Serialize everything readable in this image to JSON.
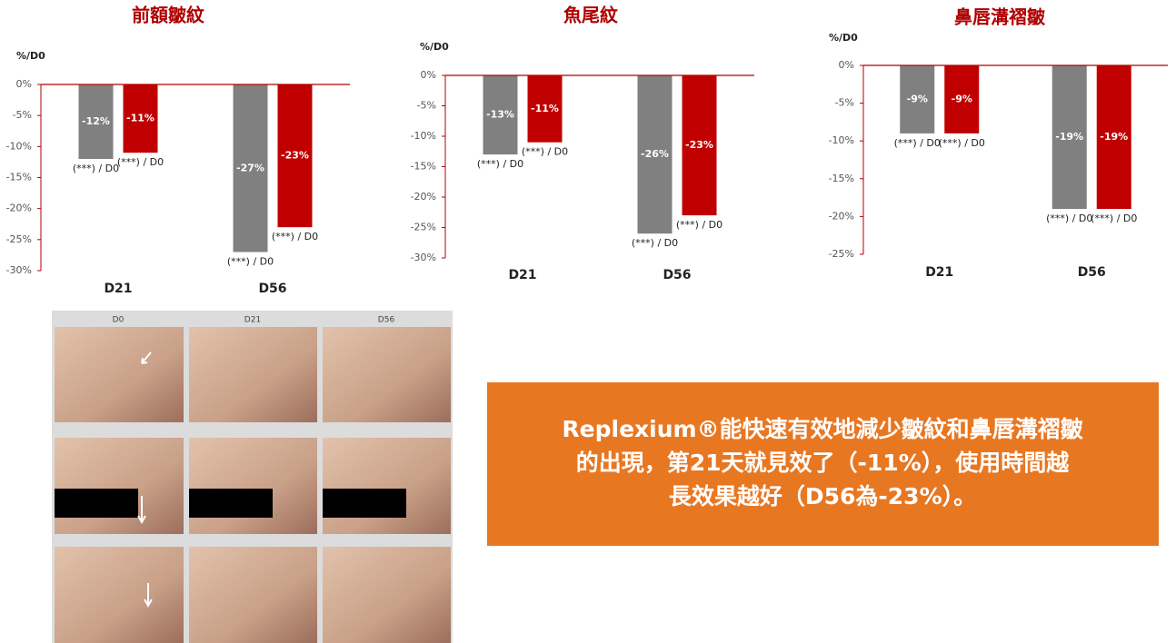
{
  "chart_data": [
    {
      "type": "bar",
      "title": "前額皺紋",
      "y_label": "%/D0",
      "categories": [
        "D21",
        "D56"
      ],
      "ylim": [
        -30,
        0
      ],
      "yticks": [
        {
          "value": 0,
          "label": "0%"
        },
        {
          "value": -5,
          "label": "-5%"
        },
        {
          "value": -10,
          "label": "-10%"
        },
        {
          "value": -15,
          "label": "-15%"
        },
        {
          "value": -20,
          "label": "-20%"
        },
        {
          "value": -25,
          "label": "-25%"
        },
        {
          "value": -30,
          "label": "-30%"
        }
      ],
      "series": [
        {
          "color": "#808080",
          "values": [
            -12,
            -27
          ],
          "value_labels": [
            "-12%",
            "-27%"
          ],
          "annotations": [
            "(***) / D0",
            "(***) / D0"
          ]
        },
        {
          "color": "#c00000",
          "values": [
            -11,
            -23
          ],
          "value_labels": [
            "-11%",
            "-23%"
          ],
          "annotations": [
            "(***) / D0",
            "(***) / D0"
          ]
        }
      ]
    },
    {
      "type": "bar",
      "title": "魚尾紋",
      "y_label": "%/D0",
      "categories": [
        "D21",
        "D56"
      ],
      "ylim": [
        -30,
        0
      ],
      "yticks": [
        {
          "value": 0,
          "label": "0%"
        },
        {
          "value": -5,
          "label": "-5%"
        },
        {
          "value": -10,
          "label": "-10%"
        },
        {
          "value": -15,
          "label": "-15%"
        },
        {
          "value": -20,
          "label": "-20%"
        },
        {
          "value": -25,
          "label": "-25%"
        },
        {
          "value": -30,
          "label": "-30%"
        }
      ],
      "series": [
        {
          "color": "#808080",
          "values": [
            -13,
            -26
          ],
          "value_labels": [
            "-13%",
            "-26%"
          ],
          "annotations": [
            "(***) / D0",
            "(***) / D0"
          ]
        },
        {
          "color": "#c00000",
          "values": [
            -11,
            -23
          ],
          "value_labels": [
            "-11%",
            "-23%"
          ],
          "annotations": [
            "(***) / D0",
            "(***) / D0"
          ]
        }
      ]
    },
    {
      "type": "bar",
      "title": "鼻唇溝褶皺",
      "y_label": "%/D0",
      "categories": [
        "D21",
        "D56"
      ],
      "ylim": [
        -25,
        0
      ],
      "yticks": [
        {
          "value": 0,
          "label": "0%"
        },
        {
          "value": -5,
          "label": "-5%"
        },
        {
          "value": -10,
          "label": "-10%"
        },
        {
          "value": -15,
          "label": "-15%"
        },
        {
          "value": -20,
          "label": "-20%"
        },
        {
          "value": -25,
          "label": "-25%"
        }
      ],
      "series": [
        {
          "color": "#808080",
          "values": [
            -9,
            -19
          ],
          "value_labels": [
            "-9%",
            "-19%"
          ],
          "annotations": [
            "(***) / D0",
            "(***) / D0"
          ]
        },
        {
          "color": "#c00000",
          "values": [
            -9,
            -19
          ],
          "value_labels": [
            "-9%",
            "-19%"
          ],
          "annotations": [
            "(***) / D0",
            "(***) / D0"
          ]
        }
      ]
    }
  ],
  "photos": {
    "columns": [
      "D0",
      "D21",
      "D56"
    ]
  },
  "callout": {
    "lines": [
      "Replexium®能快速有效地減少皺紋和鼻唇溝褶皺",
      "的出現，第21天就見效了（-11%），使用時間越",
      "長效果越好（D56為-23%）。"
    ]
  }
}
